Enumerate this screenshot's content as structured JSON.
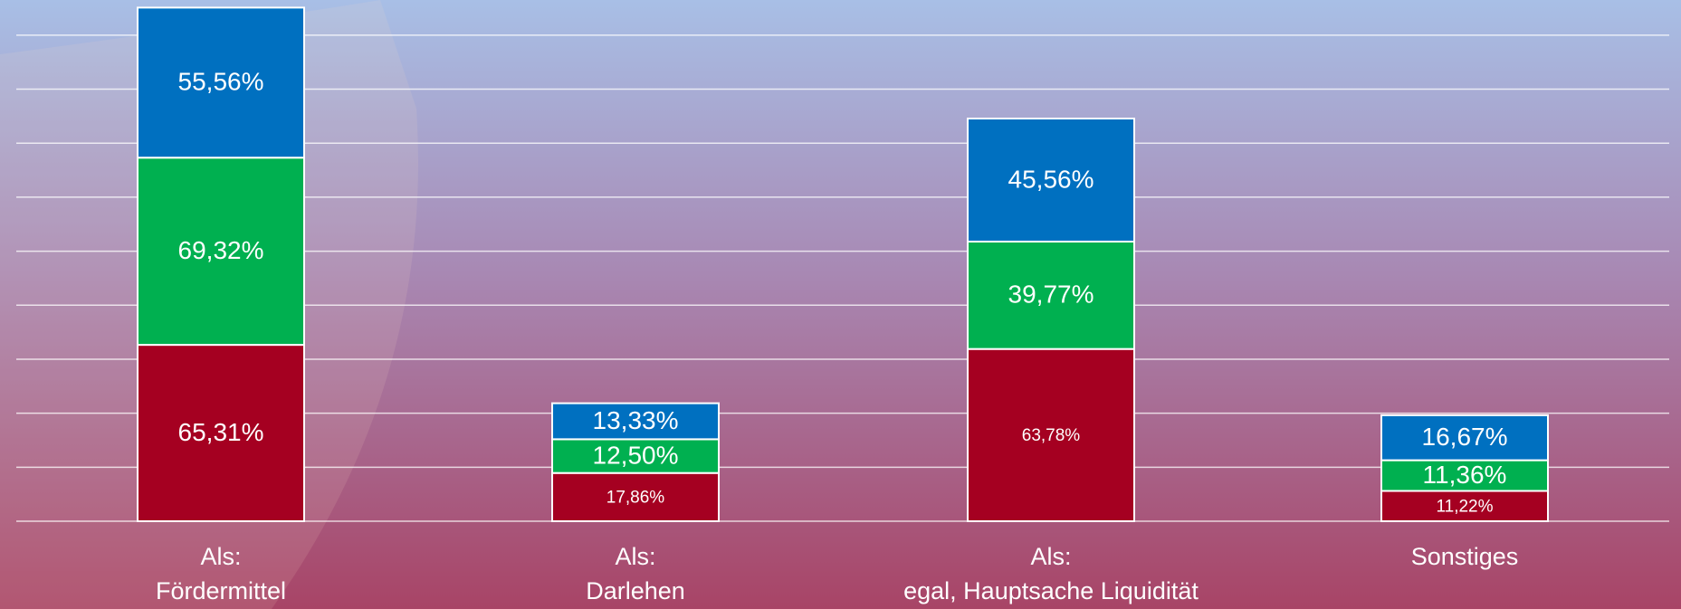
{
  "chart_data": {
    "type": "stacked_bar",
    "categories": [
      [
        "Als:",
        "Fördermittel"
      ],
      [
        "Als:",
        "Darlehen"
      ],
      [
        "Als:",
        "egal, Hauptsache Liquidität"
      ],
      [
        "Sonstiges"
      ]
    ],
    "series": [
      {
        "color": "#a50021",
        "values": [
          65.31,
          17.86,
          63.78,
          11.22
        ],
        "value_labels": [
          "65,31%",
          "17,86%",
          "63,78%",
          "11,22%"
        ]
      },
      {
        "color": "#00b050",
        "values": [
          69.32,
          12.5,
          39.77,
          11.36
        ],
        "value_labels": [
          "69,32%",
          "12,50%",
          "39,77%",
          "11,36%"
        ]
      },
      {
        "color": "#0070c0",
        "values": [
          55.56,
          13.33,
          45.56,
          16.67
        ],
        "value_labels": [
          "55,56%",
          "13,33%",
          "45,56%",
          "16,67%"
        ]
      }
    ],
    "ylim": [
      0,
      192
    ],
    "yticks": [
      0,
      20,
      40,
      60,
      80,
      100,
      120,
      140,
      160,
      180
    ],
    "grid": true
  }
}
